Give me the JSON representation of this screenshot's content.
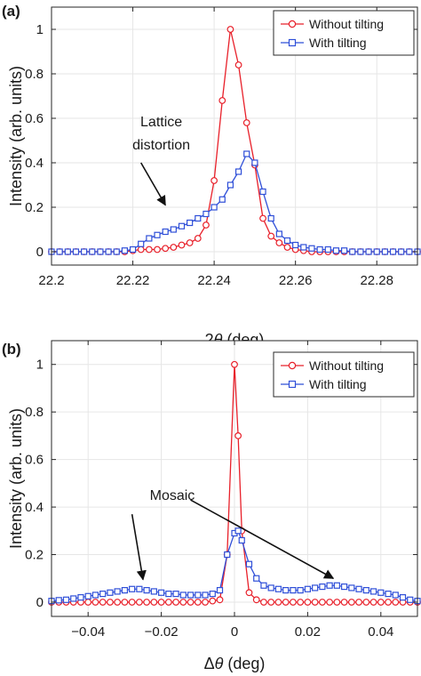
{
  "figure": {
    "colors": {
      "without_tilting": "#e8202a",
      "with_tilting": "#2f4fd8",
      "grid": "#e6e6e6",
      "axes": "#262626"
    }
  },
  "chart_data": [
    {
      "type": "line",
      "panel_label": "(a)",
      "xlabel_prefix": "2",
      "xlabel_symbol": "θ",
      "xlabel_suffix": " (deg)",
      "ylabel": "Intensity (arb. units)",
      "xlim": [
        22.2,
        22.29
      ],
      "ylim": [
        -0.06,
        1.1
      ],
      "xticks": [
        22.2,
        22.22,
        22.24,
        22.26,
        22.28
      ],
      "xtick_labels": [
        "22.2",
        "22.22",
        "22.24",
        "22.26",
        "22.28"
      ],
      "yticks": [
        0,
        0.2,
        0.4,
        0.6,
        0.8,
        1
      ],
      "ytick_labels": [
        "0",
        "0.2",
        "0.4",
        "0.6",
        "0.8",
        "1"
      ],
      "grid": true,
      "legend": "top-right",
      "legend_entries": [
        "Without tilting",
        "With tilting"
      ],
      "series": [
        {
          "name": "Without tilting",
          "marker": "circle",
          "x": [
            22.2,
            22.202,
            22.204,
            22.206,
            22.208,
            22.21,
            22.212,
            22.214,
            22.216,
            22.218,
            22.22,
            22.222,
            22.224,
            22.226,
            22.228,
            22.23,
            22.232,
            22.234,
            22.236,
            22.238,
            22.24,
            22.242,
            22.244,
            22.246,
            22.248,
            22.25,
            22.252,
            22.254,
            22.256,
            22.258,
            22.26,
            22.262,
            22.264,
            22.266,
            22.268,
            22.27,
            22.272,
            22.274,
            22.276,
            22.278,
            22.28,
            22.282,
            22.284,
            22.286,
            22.288,
            22.29
          ],
          "y": [
            0,
            0,
            0,
            0,
            0,
            0,
            0,
            0,
            0,
            0,
            0.005,
            0.01,
            0.01,
            0.01,
            0.015,
            0.02,
            0.03,
            0.04,
            0.06,
            0.12,
            0.32,
            0.68,
            1.0,
            0.84,
            0.58,
            0.39,
            0.15,
            0.07,
            0.04,
            0.02,
            0.01,
            0.005,
            0,
            0,
            0,
            0,
            0,
            0,
            0,
            0,
            0,
            0,
            0,
            0,
            0,
            0
          ]
        },
        {
          "name": "With tilting",
          "marker": "square",
          "x": [
            22.2,
            22.202,
            22.204,
            22.206,
            22.208,
            22.21,
            22.212,
            22.214,
            22.216,
            22.218,
            22.22,
            22.222,
            22.224,
            22.226,
            22.228,
            22.23,
            22.232,
            22.234,
            22.236,
            22.238,
            22.24,
            22.242,
            22.244,
            22.246,
            22.248,
            22.25,
            22.252,
            22.254,
            22.256,
            22.258,
            22.26,
            22.262,
            22.264,
            22.266,
            22.268,
            22.27,
            22.272,
            22.274,
            22.276,
            22.278,
            22.28,
            22.282,
            22.284,
            22.286,
            22.288,
            22.29
          ],
          "y": [
            0,
            0,
            0,
            0,
            0,
            0,
            0,
            0,
            0,
            0.005,
            0.01,
            0.035,
            0.06,
            0.075,
            0.09,
            0.1,
            0.115,
            0.13,
            0.15,
            0.17,
            0.2,
            0.235,
            0.3,
            0.36,
            0.44,
            0.4,
            0.27,
            0.15,
            0.08,
            0.05,
            0.03,
            0.02,
            0.015,
            0.01,
            0.01,
            0.005,
            0.005,
            0,
            0,
            0,
            0,
            0,
            0,
            0,
            0,
            0
          ]
        }
      ],
      "annotations": [
        {
          "lines": [
            "Lattice",
            "distortion"
          ],
          "text_x": 22.227,
          "text_y": [
            0.565,
            0.46
          ],
          "arrow_from": [
            22.222,
            0.4
          ],
          "arrow_to": [
            22.228,
            0.21
          ]
        }
      ]
    },
    {
      "type": "line",
      "panel_label": "(b)",
      "xlabel_prefix": "Δ",
      "xlabel_symbol": "θ",
      "xlabel_suffix": " (deg)",
      "ylabel": "Intensity (arb. units)",
      "xlim": [
        -0.05,
        0.05
      ],
      "ylim": [
        -0.06,
        1.1
      ],
      "xticks": [
        -0.04,
        -0.02,
        0,
        0.02,
        0.04
      ],
      "xtick_labels": [
        "−0.04",
        "−0.02",
        "0",
        "0.02",
        "0.04"
      ],
      "yticks": [
        0,
        0.2,
        0.4,
        0.6,
        0.8,
        1
      ],
      "ytick_labels": [
        "0",
        "0.2",
        "0.4",
        "0.6",
        "0.8",
        "1"
      ],
      "grid": true,
      "legend": "top-right",
      "legend_entries": [
        "Without tilting",
        "With tilting"
      ],
      "series": [
        {
          "name": "Without tilting",
          "marker": "circle",
          "x": [
            -0.05,
            -0.048,
            -0.046,
            -0.044,
            -0.042,
            -0.04,
            -0.038,
            -0.036,
            -0.034,
            -0.032,
            -0.03,
            -0.028,
            -0.026,
            -0.024,
            -0.022,
            -0.02,
            -0.018,
            -0.016,
            -0.014,
            -0.012,
            -0.01,
            -0.008,
            -0.006,
            -0.004,
            -0.002,
            0,
            0.001,
            0.002,
            0.004,
            0.006,
            0.008,
            0.01,
            0.012,
            0.014,
            0.016,
            0.018,
            0.02,
            0.022,
            0.024,
            0.026,
            0.028,
            0.03,
            0.032,
            0.034,
            0.036,
            0.038,
            0.04,
            0.042,
            0.044,
            0.046,
            0.048,
            0.05
          ],
          "y": [
            0,
            0,
            0,
            0,
            0,
            0,
            0,
            0,
            0,
            0,
            0,
            0,
            0,
            0,
            0,
            0,
            0,
            0,
            0,
            0,
            0,
            0,
            0.005,
            0.01,
            0.2,
            1.0,
            0.7,
            0.3,
            0.04,
            0.01,
            0,
            0,
            0,
            0,
            0,
            0,
            0,
            0,
            0,
            0,
            0,
            0,
            0,
            0,
            0,
            0,
            0,
            0,
            0,
            0,
            0,
            0
          ]
        },
        {
          "name": "With tilting",
          "marker": "square",
          "x": [
            -0.05,
            -0.048,
            -0.046,
            -0.044,
            -0.042,
            -0.04,
            -0.038,
            -0.036,
            -0.034,
            -0.032,
            -0.03,
            -0.028,
            -0.026,
            -0.024,
            -0.022,
            -0.02,
            -0.018,
            -0.016,
            -0.014,
            -0.012,
            -0.01,
            -0.008,
            -0.006,
            -0.004,
            -0.002,
            0,
            0.001,
            0.002,
            0.004,
            0.006,
            0.008,
            0.01,
            0.012,
            0.014,
            0.016,
            0.018,
            0.02,
            0.022,
            0.024,
            0.026,
            0.028,
            0.03,
            0.032,
            0.034,
            0.036,
            0.038,
            0.04,
            0.042,
            0.044,
            0.046,
            0.048,
            0.05
          ],
          "y": [
            0.005,
            0.008,
            0.01,
            0.015,
            0.02,
            0.025,
            0.03,
            0.035,
            0.04,
            0.045,
            0.05,
            0.055,
            0.055,
            0.05,
            0.045,
            0.04,
            0.035,
            0.035,
            0.03,
            0.03,
            0.03,
            0.03,
            0.035,
            0.05,
            0.2,
            0.29,
            0.3,
            0.26,
            0.16,
            0.1,
            0.07,
            0.06,
            0.055,
            0.05,
            0.05,
            0.05,
            0.055,
            0.06,
            0.065,
            0.07,
            0.07,
            0.065,
            0.06,
            0.055,
            0.05,
            0.045,
            0.04,
            0.035,
            0.03,
            0.02,
            0.01,
            0.005
          ]
        }
      ],
      "annotations": [
        {
          "lines": [
            "Mosaic"
          ],
          "text_x": -0.017,
          "text_y": [
            0.43
          ],
          "arrow_from": [
            -0.028,
            0.37
          ],
          "arrow_to": [
            -0.025,
            0.095
          ]
        },
        {
          "lines": [],
          "arrow_from": [
            -0.012,
            0.43
          ],
          "arrow_to": [
            0.027,
            0.1
          ]
        }
      ]
    }
  ]
}
